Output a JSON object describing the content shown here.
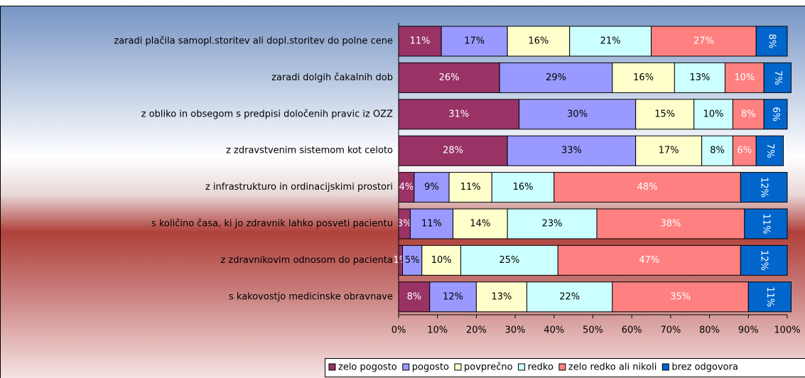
{
  "chart_data": {
    "type": "stacked_bar_horizontal",
    "categories": [
      "zaradi plačila samopl.storitev ali dopl.storitev do polne cene",
      "zaradi dolgih čakalnih dob",
      "z obliko in obsegom s predpisi določenih pravic iz OZZ",
      "z zdravstvenim sistemom kot celoto",
      "z infrastrukturo in ordinacijskimi prostori",
      "s količino časa, ki jo zdravnik lahko posveti pacientu",
      "z zdravnikovim odnosom do pacienta",
      "s kakovostjo medicinske obravnave"
    ],
    "series": [
      {
        "name": "zelo pogosto",
        "color": "#993366",
        "label_color": "#ffffff",
        "values": [
          11,
          26,
          31,
          28,
          4,
          3,
          1,
          8
        ],
        "value_labels": [
          "11%",
          "26%",
          "31%",
          "28%",
          "4%",
          "3%",
          "1%",
          "8%"
        ]
      },
      {
        "name": "pogosto",
        "color": "#9999ff",
        "label_color": "#000000",
        "values": [
          17,
          29,
          30,
          33,
          9,
          11,
          5,
          12
        ],
        "value_labels": [
          "17%",
          "29%",
          "30%",
          "33%",
          "9%",
          "11%",
          "5%",
          "12%"
        ]
      },
      {
        "name": "povprečno",
        "color": "#ffffcc",
        "label_color": "#000000",
        "values": [
          16,
          16,
          15,
          17,
          11,
          14,
          10,
          13
        ],
        "value_labels": [
          "16%",
          "16%",
          "15%",
          "17%",
          "11%",
          "14%",
          "10%",
          "13%"
        ]
      },
      {
        "name": "redko",
        "color": "#ccffff",
        "label_color": "#000000",
        "values": [
          21,
          13,
          10,
          8,
          16,
          23,
          25,
          22
        ],
        "value_labels": [
          "21%",
          "13%",
          "10%",
          "8%",
          "16%",
          "23%",
          "25%",
          "22%"
        ]
      },
      {
        "name": "zelo redko ali nikoli",
        "color": "#ff8080",
        "label_color": "#ffffff",
        "values": [
          27,
          10,
          8,
          6,
          48,
          38,
          47,
          35
        ],
        "value_labels": [
          "27%",
          "10%",
          "8%",
          "6%",
          "48%",
          "38%",
          "47%",
          "35%"
        ]
      },
      {
        "name": "brez odgovora",
        "color": "#0066cc",
        "label_color": "#ffffff",
        "label_rotated": true,
        "values": [
          8,
          7,
          6,
          7,
          12,
          11,
          12,
          11
        ],
        "value_labels": [
          "8%",
          "7%",
          "6%",
          "7%",
          "12%",
          "11%",
          "12%",
          "11%"
        ]
      }
    ],
    "xlim": [
      0,
      100
    ],
    "xticks": [
      {
        "value": 0,
        "label": "0%"
      },
      {
        "value": 10,
        "label": "10%"
      },
      {
        "value": 20,
        "label": "20%"
      },
      {
        "value": 30,
        "label": "30%"
      },
      {
        "value": 40,
        "label": "40%"
      },
      {
        "value": 50,
        "label": "50%"
      },
      {
        "value": 60,
        "label": "60%"
      },
      {
        "value": 70,
        "label": "70%"
      },
      {
        "value": 80,
        "label": "80%"
      },
      {
        "value": 90,
        "label": "90%"
      },
      {
        "value": 100,
        "label": "100%"
      }
    ],
    "legend": "bottom"
  }
}
